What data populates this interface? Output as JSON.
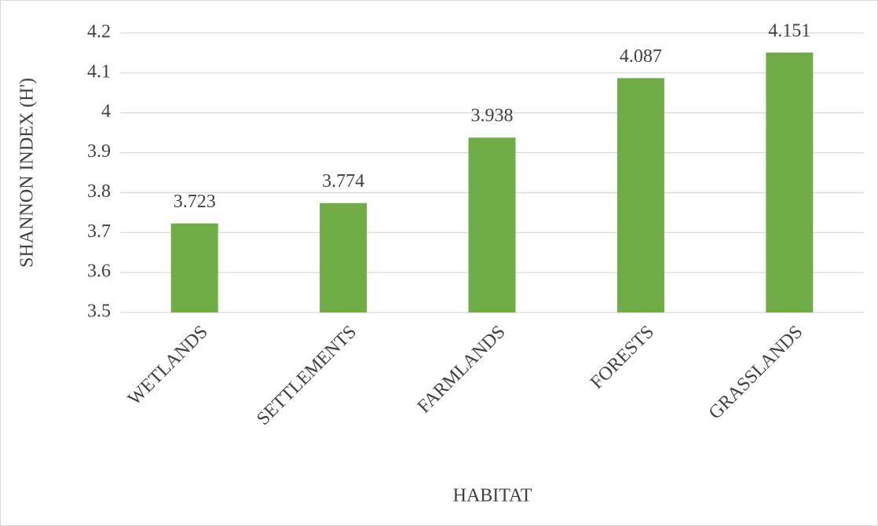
{
  "chart_data": {
    "type": "bar",
    "x_label": "HABITAT",
    "y_label": "SHANNON INDEX (H')",
    "categories": [
      "WETLANDS",
      "SETTLEMENTS",
      "FARMLANDS",
      "FORESTS",
      "GRASSLANDS"
    ],
    "values": [
      3.723,
      3.774,
      3.938,
      4.087,
      4.151
    ],
    "color": "#70ad47",
    "ylim": [
      3.5,
      4.2
    ],
    "yticks": [
      3.5,
      3.6,
      3.7,
      3.8,
      3.9,
      4,
      4.1,
      4.2
    ],
    "grid": true,
    "data_labels": true
  }
}
